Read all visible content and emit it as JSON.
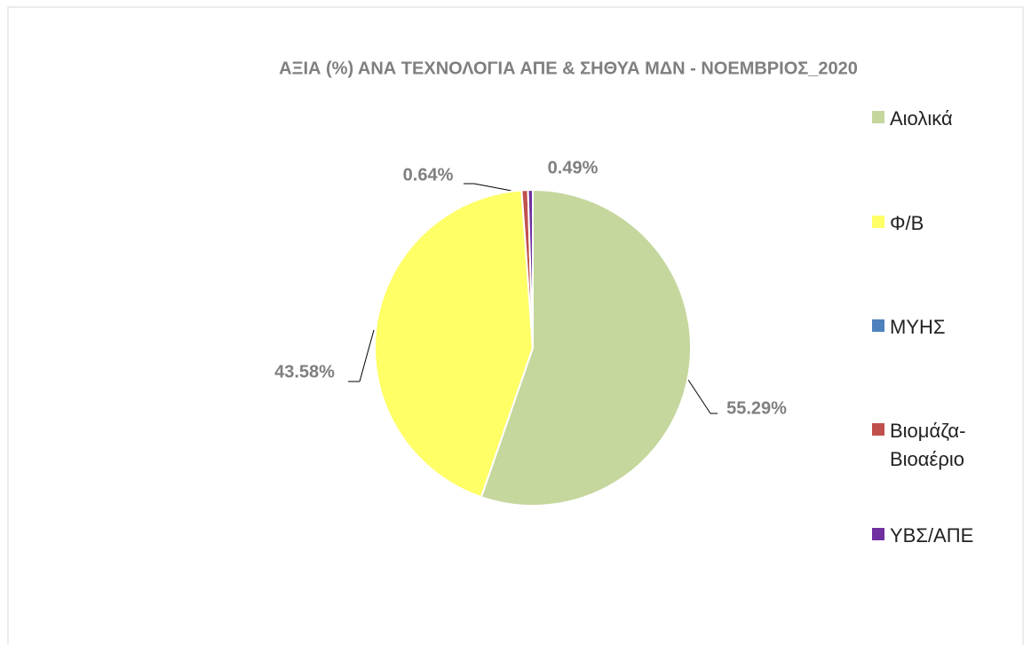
{
  "chart_data": {
    "type": "pie",
    "title": "ΑΞΙΑ (%) ΑΝΑ ΤΕΧΝΟΛΟΓΙΑ ΑΠΕ & ΣΗΘΥΑ ΜΔΝ - ΝΟΕΜΒΡΙΟΣ_2020",
    "categories": [
      "Αιολικά",
      "Φ/Β",
      "ΜΥΗΣ",
      "Βιομάζα-Βιοαέριο",
      "ΥΒΣ/ΑΠΕ"
    ],
    "values": [
      55.29,
      43.58,
      0,
      0.64,
      0.49
    ],
    "value_labels": [
      "55.29%",
      "43.58%",
      null,
      "0.64%",
      "0.49%"
    ],
    "colors": [
      "#c5d79d",
      "#ffff66",
      "#4f81bd",
      "#c0504d",
      "#7030a0"
    ],
    "legend": "right"
  }
}
